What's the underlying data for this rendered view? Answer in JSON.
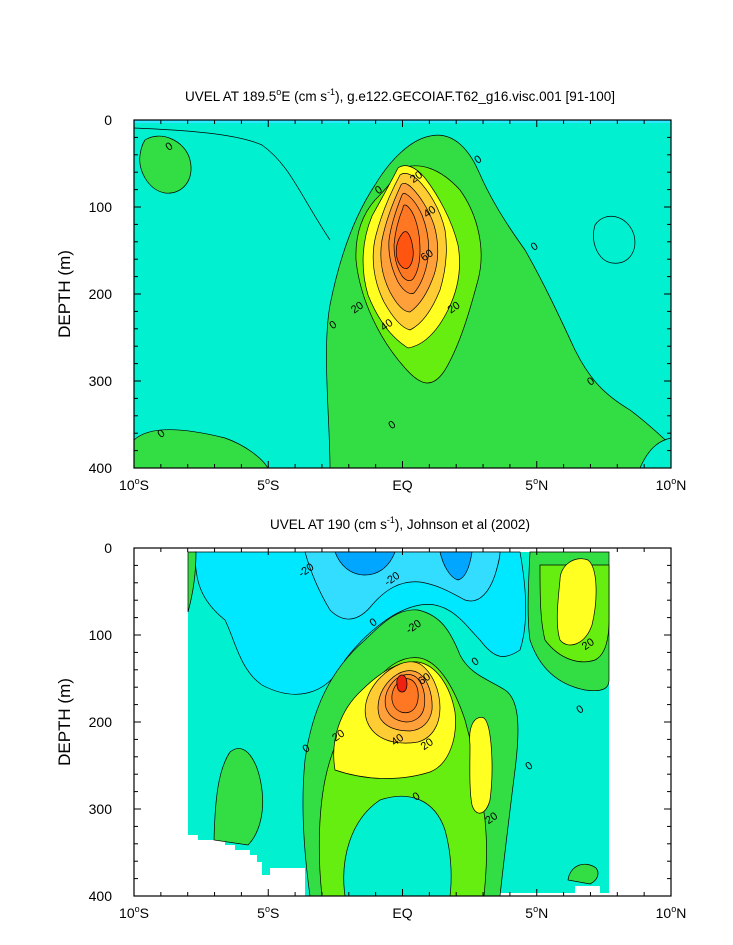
{
  "chart_data": [
    {
      "type": "contour",
      "title": "UVEL AT 189.5",
      "title_super": "o",
      "title_mid": "E (cm s",
      "title_exp": "-1",
      "title_tail": "), g.e122.GECOIAF.T62_g16.visc.001 [91-100]",
      "ylabel": "DEPTH (m)",
      "xlim": [
        -10,
        10
      ],
      "ylim": [
        0,
        400
      ],
      "x_ticks": [
        {
          "value": -10,
          "label": "10",
          "sup": "o",
          "hemi": "S"
        },
        {
          "value": -5,
          "label": "5",
          "sup": "o",
          "hemi": "S"
        },
        {
          "value": 0,
          "label": "EQ",
          "sup": "",
          "hemi": ""
        },
        {
          "value": 5,
          "label": "5",
          "sup": "o",
          "hemi": "N"
        },
        {
          "value": 10,
          "label": "10",
          "sup": "o",
          "hemi": "N"
        }
      ],
      "y_ticks": [
        {
          "value": 0,
          "label": "0"
        },
        {
          "value": 100,
          "label": "100"
        },
        {
          "value": 200,
          "label": "200"
        },
        {
          "value": 300,
          "label": "300"
        },
        {
          "value": 400,
          "label": "400"
        }
      ],
      "contour_interval_cm_s": 10,
      "max_speed_cm_s": 70,
      "core": {
        "lat": 0.1,
        "depth": 150
      },
      "contour_labels": [
        {
          "text": "0",
          "lat": -8.7,
          "depth": 30
        },
        {
          "text": "20",
          "lat": 0.5,
          "depth": 65
        },
        {
          "text": "0",
          "lat": 2.8,
          "depth": 45
        },
        {
          "text": "0",
          "lat": -0.9,
          "depth": 80
        },
        {
          "text": "40",
          "lat": 1.0,
          "depth": 105
        },
        {
          "text": "0",
          "lat": 4.9,
          "depth": 145
        },
        {
          "text": "60",
          "lat": 0.9,
          "depth": 155
        },
        {
          "text": "20",
          "lat": -1.7,
          "depth": 215
        },
        {
          "text": "20",
          "lat": 1.9,
          "depth": 215
        },
        {
          "text": "40",
          "lat": -0.6,
          "depth": 235
        },
        {
          "text": "0",
          "lat": -2.6,
          "depth": 235
        },
        {
          "text": "0",
          "lat": 7.0,
          "depth": 300
        },
        {
          "text": "0",
          "lat": -9.0,
          "depth": 360
        },
        {
          "text": "0",
          "lat": -0.4,
          "depth": 350
        }
      ]
    },
    {
      "type": "contour",
      "title": "UVEL AT 190 (cm s",
      "title_exp": "-1",
      "title_tail": "), Johnson et al (2002)",
      "ylabel": "DEPTH (m)",
      "xlim": [
        -10,
        10
      ],
      "ylim": [
        0,
        400
      ],
      "data_lat_range": [
        -8,
        8
      ],
      "x_ticks": [
        {
          "value": -10,
          "label": "10",
          "sup": "o",
          "hemi": "S"
        },
        {
          "value": -5,
          "label": "5",
          "sup": "o",
          "hemi": "S"
        },
        {
          "value": 0,
          "label": "EQ",
          "sup": "",
          "hemi": ""
        },
        {
          "value": 5,
          "label": "5",
          "sup": "o",
          "hemi": "N"
        },
        {
          "value": 10,
          "label": "10",
          "sup": "o",
          "hemi": "N"
        }
      ],
      "y_ticks": [
        {
          "value": 0,
          "label": "0"
        },
        {
          "value": 100,
          "label": "100"
        },
        {
          "value": 200,
          "label": "200"
        },
        {
          "value": 300,
          "label": "300"
        },
        {
          "value": 400,
          "label": "400"
        }
      ],
      "contour_interval_cm_s": 10,
      "max_speed_cm_s": 70,
      "core": {
        "lat": 0.0,
        "depth": 150
      },
      "contour_labels": [
        {
          "text": "-20",
          "lat": -3.6,
          "depth": 25
        },
        {
          "text": "-20",
          "lat": -0.4,
          "depth": 35
        },
        {
          "text": "-20",
          "lat": 0.4,
          "depth": 90
        },
        {
          "text": "0",
          "lat": -1.1,
          "depth": 85
        },
        {
          "text": "0",
          "lat": 2.7,
          "depth": 130
        },
        {
          "text": "20",
          "lat": 6.9,
          "depth": 110
        },
        {
          "text": "60",
          "lat": 0.8,
          "depth": 150
        },
        {
          "text": "0",
          "lat": 6.6,
          "depth": 185
        },
        {
          "text": "20",
          "lat": -2.4,
          "depth": 215
        },
        {
          "text": "40",
          "lat": -0.2,
          "depth": 220
        },
        {
          "text": "20",
          "lat": 0.9,
          "depth": 225
        },
        {
          "text": "0",
          "lat": -3.6,
          "depth": 230
        },
        {
          "text": "0",
          "lat": 4.7,
          "depth": 250
        },
        {
          "text": "0",
          "lat": 0.5,
          "depth": 285
        },
        {
          "text": "20",
          "lat": 3.3,
          "depth": 310
        }
      ]
    }
  ]
}
